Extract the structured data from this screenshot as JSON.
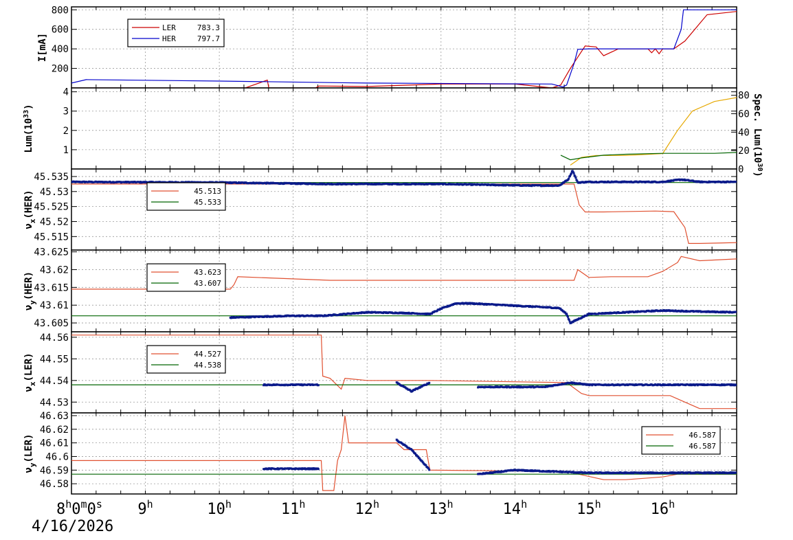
{
  "chart_data": [
    {
      "type": "line",
      "ylabel": "I[mA]",
      "yticks": [
        200,
        400,
        600,
        800
      ],
      "ylim": [
        0,
        830
      ],
      "legend": {
        "placement": "top-left",
        "entries": [
          {
            "name": "LER",
            "value": "783.3",
            "color": "#cc0000"
          },
          {
            "name": "HER",
            "value": "797.7",
            "color": "#0000cc"
          }
        ]
      },
      "series": [
        {
          "name": "LER",
          "color": "#cc0000",
          "x": [
            8.0,
            10.0,
            10.35,
            10.65,
            10.67,
            11.3,
            11.35,
            12.0,
            13.0,
            14.0,
            14.5,
            14.62,
            14.75,
            14.95,
            15.1,
            15.2,
            15.4,
            15.8,
            15.85,
            15.9,
            15.95,
            16.0,
            16.15,
            16.3,
            16.6,
            17.0
          ],
          "y": [
            0,
            0,
            0,
            80,
            0,
            0,
            20,
            15,
            40,
            40,
            0,
            30,
            200,
            430,
            420,
            330,
            400,
            400,
            360,
            400,
            350,
            400,
            400,
            480,
            750,
            783
          ]
        },
        {
          "name": "HER",
          "color": "#0000cc",
          "x": [
            8.0,
            8.2,
            10.0,
            12.0,
            14.5,
            14.65,
            14.7,
            14.8,
            14.85,
            15.0,
            16.15,
            16.25,
            16.28,
            17.0
          ],
          "y": [
            50,
            85,
            70,
            50,
            40,
            10,
            30,
            250,
            395,
            400,
            400,
            600,
            800,
            800
          ]
        }
      ]
    },
    {
      "type": "line",
      "ylabel": "Lum(10³³)",
      "yticks": [
        1,
        2,
        3,
        4
      ],
      "ylim": [
        0,
        4.2
      ],
      "y2label": "Spec. Lum(10³⁰)",
      "y2ticks": [
        0,
        20,
        40,
        60,
        80
      ],
      "y2lim": [
        0,
        88
      ],
      "series": [
        {
          "name": "Lum",
          "color": "#e6a800",
          "x": [
            14.75,
            14.9,
            15.1,
            15.5,
            16.0,
            16.2,
            16.4,
            16.7,
            17.0
          ],
          "y": [
            0.2,
            0.6,
            0.7,
            0.7,
            0.8,
            2.0,
            3.0,
            3.5,
            3.7
          ]
        },
        {
          "name": "Spec. Lum",
          "color": "#006400",
          "x": [
            14.62,
            14.75,
            14.9,
            15.2,
            15.5,
            16.0,
            16.4,
            16.7,
            17.0
          ],
          "y": [
            15,
            10,
            12,
            15,
            16,
            17,
            17,
            17,
            18
          ]
        }
      ]
    },
    {
      "type": "scatter",
      "ylabel": "νx(HER)",
      "yticks": [
        "45.515",
        "45.52",
        "45.525",
        "45.53",
        "45.535"
      ],
      "ylim": [
        45.5105,
        45.5375
      ],
      "legend": {
        "placement": "top-left",
        "entries": [
          {
            "value": "45.513",
            "color": "#e05030"
          },
          {
            "value": "45.533",
            "color": "#006400"
          }
        ]
      },
      "series": [
        {
          "name": "set-red",
          "color": "#e05030",
          "x": [
            8.0,
            14.8,
            14.87,
            14.95,
            15.2,
            15.9,
            16.15,
            16.3,
            16.35,
            16.5,
            17.0
          ],
          "y": [
            45.5325,
            45.5325,
            45.5255,
            45.5232,
            45.5232,
            45.5235,
            45.5233,
            45.518,
            45.5127,
            45.5127,
            45.513
          ]
        },
        {
          "name": "ref-green",
          "color": "#006400",
          "x": [
            8.0,
            17.0
          ],
          "y": [
            45.533,
            45.533
          ]
        },
        {
          "name": "meas-blue",
          "color": "#0a1a8a",
          "x": [
            8.0,
            10.0,
            11.5,
            13.0,
            14.2,
            14.6,
            14.72,
            14.78,
            14.85,
            15.0,
            15.5,
            16.0,
            16.25,
            16.5,
            17.0
          ],
          "y": [
            45.5332,
            45.533,
            45.5325,
            45.5325,
            45.532,
            45.532,
            45.534,
            45.537,
            45.533,
            45.5332,
            45.5332,
            45.5332,
            45.534,
            45.5332,
            45.5332
          ]
        }
      ]
    },
    {
      "type": "scatter",
      "ylabel": "νy(HER)",
      "yticks": [
        "43.605",
        "43.61",
        "43.615",
        "43.62",
        "43.625"
      ],
      "ylim": [
        43.6025,
        43.6255
      ],
      "legend": {
        "placement": "top-left",
        "entries": [
          {
            "value": "43.623",
            "color": "#e05030"
          },
          {
            "value": "43.607",
            "color": "#006400"
          }
        ]
      },
      "series": [
        {
          "name": "set-red",
          "color": "#e05030",
          "x": [
            8.0,
            10.15,
            10.2,
            10.25,
            11.5,
            14.8,
            14.85,
            15.0,
            15.3,
            15.8,
            16.0,
            16.2,
            16.25,
            16.5,
            17.0
          ],
          "y": [
            43.6145,
            43.6145,
            43.6158,
            43.618,
            43.617,
            43.617,
            43.62,
            43.6178,
            43.618,
            43.618,
            43.6195,
            43.622,
            43.6237,
            43.6225,
            43.623
          ]
        },
        {
          "name": "ref-green",
          "color": "#006400",
          "x": [
            8.0,
            17.0
          ],
          "y": [
            43.607,
            43.607
          ]
        },
        {
          "name": "meas-blue",
          "color": "#0a1a8a",
          "x": [
            10.15,
            10.6,
            11.0,
            11.4,
            12.0,
            12.5,
            12.85,
            13.0,
            13.2,
            13.4,
            14.6,
            14.7,
            14.75,
            15.0,
            15.5,
            16.0,
            16.5,
            17.0
          ],
          "y": [
            43.6065,
            43.6068,
            43.607,
            43.607,
            43.608,
            43.6078,
            43.6075,
            43.609,
            43.6105,
            43.6105,
            43.6092,
            43.6075,
            43.605,
            43.6075,
            43.608,
            43.6085,
            43.6082,
            43.608
          ]
        }
      ]
    },
    {
      "type": "scatter",
      "ylabel": "νx(LER)",
      "yticks": [
        "44.53",
        "44.54",
        "44.55",
        "44.56"
      ],
      "ylim": [
        44.525,
        44.5625
      ],
      "legend": {
        "placement": "top-left",
        "entries": [
          {
            "value": "44.527",
            "color": "#e05030"
          },
          {
            "value": "44.538",
            "color": "#006400"
          }
        ]
      },
      "series": [
        {
          "name": "set-red",
          "color": "#e05030",
          "x": [
            8.0,
            11.38,
            11.4,
            11.5,
            11.65,
            11.7,
            12.0,
            12.45,
            12.85,
            14.7,
            14.9,
            15.0,
            16.1,
            16.3,
            16.5,
            17.0
          ],
          "y": [
            44.561,
            44.561,
            44.542,
            44.541,
            44.536,
            44.541,
            44.54,
            44.54,
            44.54,
            44.539,
            44.534,
            44.533,
            44.533,
            44.53,
            44.527,
            44.527
          ]
        },
        {
          "name": "ref-green",
          "color": "#006400",
          "x": [
            8.0,
            17.0
          ],
          "y": [
            44.538,
            44.538
          ]
        },
        {
          "name": "meas-blue",
          "color": "#0a1a8a",
          "x": [
            10.6,
            11.35,
            12.4,
            12.6,
            12.85,
            13.5,
            14.4,
            14.75,
            15.0,
            16.0,
            17.0
          ],
          "y": [
            44.538,
            44.538,
            44.539,
            44.535,
            44.539,
            44.537,
            44.537,
            44.539,
            44.538,
            44.538,
            44.538
          ]
        }
      ]
    },
    {
      "type": "scatter",
      "ylabel": "νy(LER)",
      "yticks": [
        "46.58",
        "46.59",
        "46.6",
        "46.61",
        "46.62",
        "46.63"
      ],
      "ylim": [
        46.5725,
        46.632
      ],
      "legend": {
        "placement": "top-right",
        "entries": [
          {
            "value": "46.587",
            "color": "#e05030"
          },
          {
            "value": "46.587",
            "color": "#006400"
          }
        ]
      },
      "series": [
        {
          "name": "set-red",
          "color": "#e05030",
          "x": [
            8.0,
            11.38,
            11.4,
            11.55,
            11.6,
            11.65,
            11.7,
            11.75,
            12.4,
            12.5,
            12.8,
            12.85,
            14.7,
            15.2,
            15.5,
            16.0,
            16.2,
            16.5,
            17.0
          ],
          "y": [
            46.597,
            46.597,
            46.575,
            46.575,
            46.597,
            46.605,
            46.63,
            46.61,
            46.61,
            46.605,
            46.605,
            46.59,
            46.589,
            46.583,
            46.583,
            46.585,
            46.587,
            46.587,
            46.587
          ]
        },
        {
          "name": "ref-green",
          "color": "#006400",
          "x": [
            8.0,
            17.0
          ],
          "y": [
            46.587,
            46.587
          ]
        },
        {
          "name": "meas-blue",
          "color": "#0a1a8a",
          "x": [
            10.6,
            11.35,
            12.4,
            12.6,
            12.85,
            13.5,
            14.0,
            14.5,
            15.0,
            16.0,
            17.0
          ],
          "y": [
            46.591,
            46.591,
            46.612,
            46.605,
            46.59,
            46.587,
            46.59,
            46.589,
            46.588,
            46.588,
            46.588
          ]
        }
      ]
    }
  ],
  "x_axis": {
    "range_hours": [
      8.0,
      17.0
    ],
    "tick_labels": [
      {
        "hour": 8,
        "text": "8h0m0s"
      },
      {
        "hour": 9,
        "text": "9h"
      },
      {
        "hour": 10,
        "text": "10h"
      },
      {
        "hour": 11,
        "text": "11h"
      },
      {
        "hour": 12,
        "text": "12h"
      },
      {
        "hour": 13,
        "text": "13h"
      },
      {
        "hour": 14,
        "text": "14h"
      },
      {
        "hour": 15,
        "text": "15h"
      },
      {
        "hour": 16,
        "text": "16h"
      }
    ],
    "date": "4/16/2026"
  }
}
